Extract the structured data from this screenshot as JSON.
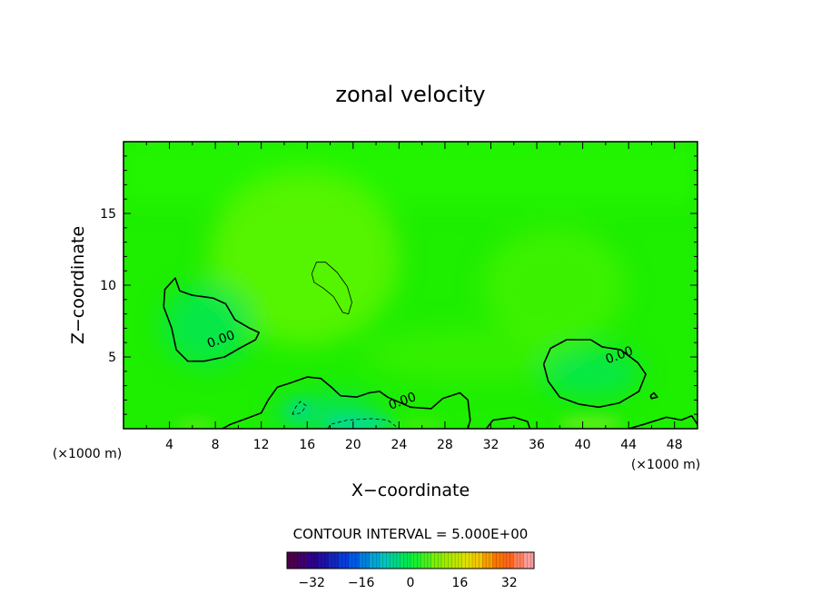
{
  "chart_data": {
    "type": "heatmap",
    "title": "zonal velocity",
    "xlabel": "X−coordinate",
    "ylabel": "Z−coordinate",
    "x_unit_left": "(×1000 m)",
    "x_unit_right": "(×1000 m)",
    "xlim": [
      0,
      50
    ],
    "ylim": [
      0,
      20
    ],
    "x_ticks": [
      4,
      8,
      12,
      16,
      20,
      24,
      28,
      32,
      36,
      40,
      44,
      48
    ],
    "y_ticks": [
      5,
      10,
      15
    ],
    "x_tick_labels": [
      "4",
      "8",
      "12",
      "16",
      "20",
      "24",
      "28",
      "32",
      "36",
      "40",
      "44",
      "48"
    ],
    "y_tick_labels": [
      "5",
      "10",
      "15"
    ],
    "contour_interval_text": "CONTOUR INTERVAL = 5.000E+00",
    "contour_labels": [
      {
        "text": "0.00",
        "x": 8.5,
        "y": 6.2
      },
      {
        "text": "0.00",
        "x": 24.3,
        "y": 1.9
      },
      {
        "text": "0.00",
        "x": 43.2,
        "y": 5.1
      }
    ],
    "zero_contours": [
      [
        [
          3.5,
          8.5
        ],
        [
          3.6,
          9.7
        ],
        [
          4.5,
          10.5
        ],
        [
          4.9,
          9.6
        ],
        [
          6.0,
          9.3
        ],
        [
          7.8,
          9.1
        ],
        [
          8.9,
          8.7
        ],
        [
          9.7,
          7.6
        ],
        [
          11.0,
          7.0
        ],
        [
          11.8,
          6.7
        ],
        [
          11.5,
          6.2
        ],
        [
          10.1,
          5.6
        ],
        [
          8.8,
          5.0
        ],
        [
          7.0,
          4.7
        ],
        [
          5.6,
          4.7
        ],
        [
          4.6,
          5.5
        ],
        [
          4.2,
          7.0
        ],
        [
          3.5,
          8.5
        ]
      ],
      [
        [
          36.6,
          4.5
        ],
        [
          37.2,
          5.6
        ],
        [
          38.6,
          6.2
        ],
        [
          40.7,
          6.2
        ],
        [
          41.7,
          5.7
        ],
        [
          43.3,
          5.5
        ],
        [
          44.8,
          4.6
        ],
        [
          45.5,
          3.8
        ],
        [
          44.9,
          2.6
        ],
        [
          43.2,
          1.8
        ],
        [
          41.4,
          1.5
        ],
        [
          39.7,
          1.7
        ],
        [
          38.0,
          2.2
        ],
        [
          37.0,
          3.3
        ],
        [
          36.6,
          4.5
        ]
      ],
      [
        [
          8.6,
          0.0
        ],
        [
          9.3,
          0.3
        ],
        [
          10.7,
          0.7
        ],
        [
          12.0,
          1.1
        ],
        [
          12.6,
          2.0
        ],
        [
          13.4,
          2.9
        ],
        [
          14.6,
          3.2
        ],
        [
          16.0,
          3.6
        ],
        [
          17.2,
          3.5
        ],
        [
          18.1,
          2.9
        ],
        [
          18.9,
          2.3
        ],
        [
          20.3,
          2.2
        ],
        [
          21.4,
          2.5
        ],
        [
          22.3,
          2.6
        ],
        [
          23.0,
          2.2
        ],
        [
          25.0,
          1.5
        ],
        [
          26.8,
          1.4
        ],
        [
          27.8,
          2.1
        ],
        [
          29.3,
          2.5
        ],
        [
          30.0,
          2.0
        ],
        [
          30.2,
          0.6
        ],
        [
          30.0,
          0.0
        ]
      ],
      [
        [
          31.6,
          0.0
        ],
        [
          32.2,
          0.6
        ],
        [
          34.0,
          0.8
        ],
        [
          35.2,
          0.5
        ],
        [
          35.4,
          0.0
        ]
      ],
      [
        [
          44.0,
          0.0
        ],
        [
          45.3,
          0.3
        ],
        [
          47.3,
          0.8
        ],
        [
          48.6,
          0.6
        ],
        [
          49.5,
          0.9
        ],
        [
          50.0,
          0.3
        ]
      ],
      [
        [
          45.9,
          2.3
        ],
        [
          46.2,
          2.5
        ],
        [
          46.5,
          2.2
        ],
        [
          46.0,
          2.1
        ],
        [
          45.9,
          2.3
        ]
      ]
    ],
    "positive_contours": [
      [
        [
          16.4,
          10.8
        ],
        [
          16.8,
          11.6
        ],
        [
          17.6,
          11.6
        ],
        [
          18.6,
          10.9
        ],
        [
          19.5,
          9.9
        ],
        [
          19.9,
          8.8
        ],
        [
          19.6,
          8.0
        ],
        [
          19.1,
          8.1
        ],
        [
          18.3,
          9.2
        ],
        [
          17.4,
          9.8
        ],
        [
          16.6,
          10.2
        ],
        [
          16.4,
          10.8
        ]
      ]
    ],
    "negative_contours": [
      [
        [
          14.7,
          1.0
        ],
        [
          15.0,
          1.5
        ],
        [
          15.4,
          1.9
        ],
        [
          15.9,
          1.6
        ],
        [
          15.5,
          1.1
        ],
        [
          14.7,
          1.0
        ]
      ],
      [
        [
          17.8,
          0.0
        ],
        [
          18.0,
          0.3
        ],
        [
          19.5,
          0.6
        ],
        [
          21.5,
          0.7
        ],
        [
          23.0,
          0.6
        ],
        [
          24.0,
          0.0
        ]
      ]
    ],
    "colorbar": {
      "range": [
        -40,
        40
      ],
      "segments": 24,
      "tick_values": [
        -32,
        -16,
        0,
        16,
        32
      ],
      "tick_labels": [
        "−32",
        "−16",
        "0",
        "16",
        "32"
      ]
    },
    "colors": {
      "field_base": "#1eee00",
      "field_top": "#2afa00",
      "field_mid": "#5ff400",
      "weak_negative": "#00e65e",
      "strong_negative": "#00d8b8",
      "weak_positive": "#8aee2e",
      "contour": "#000000"
    }
  }
}
